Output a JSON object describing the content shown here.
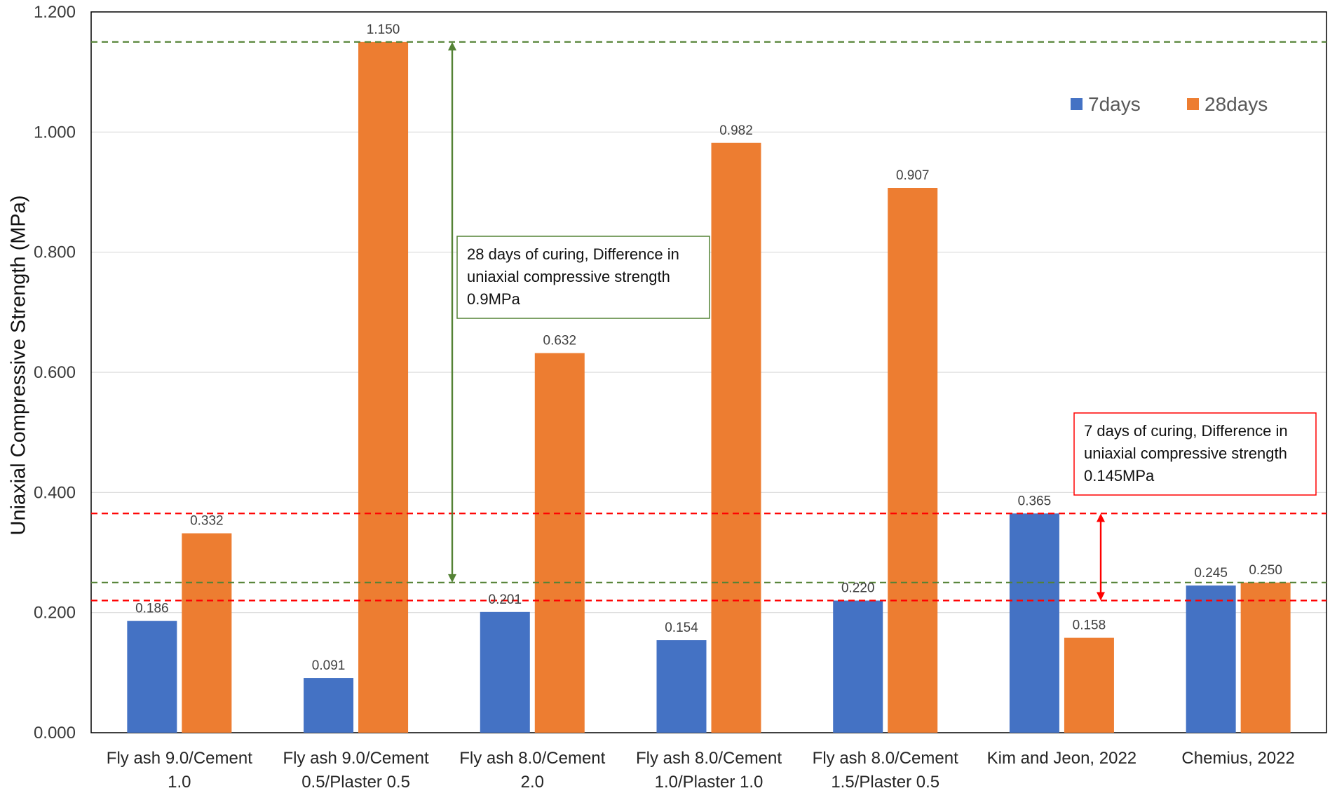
{
  "chart_data": {
    "type": "bar",
    "title": "",
    "xlabel": "",
    "ylabel": "Uniaxial Compressive Strength (MPa)",
    "ylim": [
      0,
      1.2
    ],
    "yticks": [
      "0.000",
      "0.200",
      "0.400",
      "0.600",
      "0.800",
      "1.000",
      "1.200"
    ],
    "yticks_values": [
      0,
      0.2,
      0.4,
      0.6,
      0.8,
      1.0,
      1.2
    ],
    "grid": true,
    "legend_position": "top-right",
    "categories": [
      [
        "Fly ash 9.0/Cement",
        "1.0"
      ],
      [
        "Fly ash 9.0/Cement",
        "0.5/Plaster 0.5"
      ],
      [
        "Fly ash 8.0/Cement",
        "2.0"
      ],
      [
        "Fly ash 8.0/Cement",
        "1.0/Plaster 1.0"
      ],
      [
        "Fly ash 8.0/Cement",
        "1.5/Plaster 0.5"
      ],
      [
        "Kim and Jeon, 2022"
      ],
      [
        "Chemius, 2022"
      ]
    ],
    "series": [
      {
        "name": "7days",
        "color": "#4472C4",
        "values": [
          0.186,
          0.091,
          0.201,
          0.154,
          0.22,
          0.365,
          0.245
        ],
        "labels": [
          "0.186",
          "0.091",
          "0.201",
          "0.154",
          "0.220",
          "0.365",
          "0.245"
        ]
      },
      {
        "name": "28days",
        "color": "#ED7D31",
        "values": [
          0.332,
          1.15,
          0.632,
          0.982,
          0.907,
          0.158,
          0.25
        ],
        "labels": [
          "0.332",
          "1.150",
          "0.632",
          "0.982",
          "0.907",
          "0.158",
          "0.250"
        ]
      }
    ],
    "reference_lines": [
      {
        "value": 1.15,
        "color": "#548235",
        "style": "dashed"
      },
      {
        "value": 0.25,
        "color": "#548235",
        "style": "dashed"
      },
      {
        "value": 0.365,
        "color": "#FF0000",
        "style": "dashed"
      },
      {
        "value": 0.22,
        "color": "#FF0000",
        "style": "dashed"
      }
    ],
    "annotations": [
      {
        "lines": [
          "28 days of curing, Difference in",
          "uniaxial compressive strength",
          "0.9MPa"
        ],
        "color": "#548235",
        "arrow_from": 0.25,
        "arrow_to": 1.15
      },
      {
        "lines": [
          "7 days of curing, Difference in",
          "uniaxial compressive strength",
          "0.145MPa"
        ],
        "color": "#FF0000",
        "arrow_from": 0.22,
        "arrow_to": 0.365
      }
    ]
  }
}
